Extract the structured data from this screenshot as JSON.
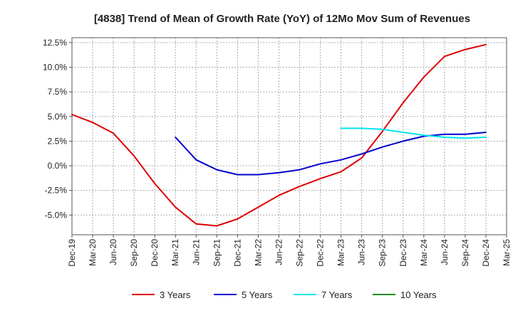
{
  "chart_data": {
    "type": "line",
    "title": "[4838]  Trend of Mean of Growth Rate (YoY) of 12Mo Mov Sum of Revenues",
    "xlabel": "",
    "ylabel": "",
    "categories": [
      "Dec-19",
      "Mar-20",
      "Jun-20",
      "Sep-20",
      "Dec-20",
      "Mar-21",
      "Jun-21",
      "Sep-21",
      "Dec-21",
      "Mar-22",
      "Jun-22",
      "Sep-22",
      "Dec-22",
      "Mar-23",
      "Jun-23",
      "Sep-23",
      "Dec-23",
      "Mar-24",
      "Jun-24",
      "Sep-24",
      "Dec-24",
      "Mar-25"
    ],
    "y_ticks": [
      12.5,
      10.0,
      7.5,
      5.0,
      2.5,
      0.0,
      -2.5,
      -5.0
    ],
    "y_tick_labels": [
      "12.5%",
      "10.0%",
      "7.5%",
      "5.0%",
      "2.5%",
      "0.0%",
      "-2.5%",
      "-5.0%"
    ],
    "ylim": [
      -7.0,
      13.0
    ],
    "grid": true,
    "legend_position": "bottom",
    "series": [
      {
        "name": "3 Years",
        "color": "#dd0000",
        "values": [
          5.2,
          4.4,
          3.3,
          1.0,
          -1.8,
          -4.2,
          -5.9,
          -6.1,
          -5.4,
          -4.2,
          -3.0,
          -2.1,
          -1.3,
          -0.6,
          0.8,
          3.5,
          6.4,
          9.0,
          11.1,
          11.8,
          12.3,
          null
        ]
      },
      {
        "name": "5 Years",
        "color": "#0000cc",
        "values": [
          null,
          null,
          null,
          null,
          null,
          2.9,
          0.6,
          -0.4,
          -0.9,
          -0.9,
          -0.7,
          -0.4,
          0.2,
          0.6,
          1.2,
          1.9,
          2.5,
          3.0,
          3.2,
          3.2,
          3.4,
          null
        ]
      },
      {
        "name": "7 Years",
        "color": "#00e5ee",
        "values": [
          null,
          null,
          null,
          null,
          null,
          null,
          null,
          null,
          null,
          null,
          null,
          null,
          null,
          3.8,
          3.8,
          3.7,
          3.4,
          3.1,
          2.9,
          2.8,
          2.9,
          null
        ]
      },
      {
        "name": "10 Years",
        "color": "#228b22",
        "values": [
          null,
          null,
          null,
          null,
          null,
          null,
          null,
          null,
          null,
          null,
          null,
          null,
          null,
          null,
          null,
          null,
          null,
          null,
          null,
          null,
          null,
          null
        ]
      }
    ]
  }
}
